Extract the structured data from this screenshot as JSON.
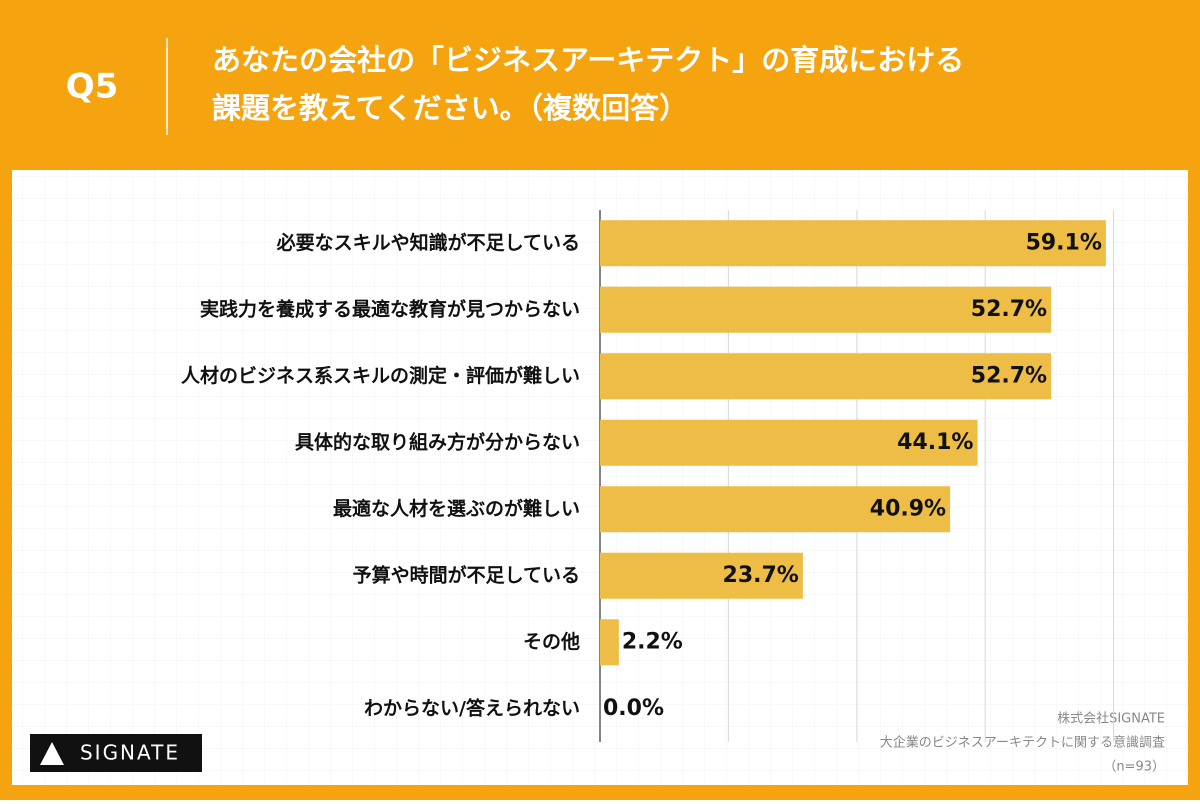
{
  "header": {
    "label": "Q5",
    "title": [
      "あなたの会社の「ビジネスアーキテクト」の育成における",
      "課題を教えてください。（複数回答）"
    ]
  },
  "chart_data": {
    "type": "hbar",
    "categories": [
      "必要なスキルや知識が不足している",
      "実践力を養成する最適な教育が見つからない",
      "人材のビジネス系スキルの測定・評価が難しい",
      "具体的な取り組み方が分からない",
      "最適な人材を選ぶのが難しい",
      "予算や時間が不足している",
      "その他",
      "わからない/答えられない"
    ],
    "values": [
      59.1,
      52.7,
      52.7,
      44.1,
      40.9,
      23.7,
      2.2,
      0.0
    ],
    "value_labels": [
      "59.1%",
      "52.7%",
      "52.7%",
      "44.1%",
      "40.9%",
      "23.7%",
      "2.2%",
      "0.0%"
    ],
    "color": "#eebd45",
    "xlim": [
      0,
      60
    ],
    "xticks": [
      0,
      15,
      30,
      45,
      60
    ],
    "grid": true
  },
  "logo": "SIGNATE",
  "source": [
    "株式会社SIGNATE",
    "大企業のビジネスアーキテクトに関する意識調査",
    "（n=93）"
  ]
}
